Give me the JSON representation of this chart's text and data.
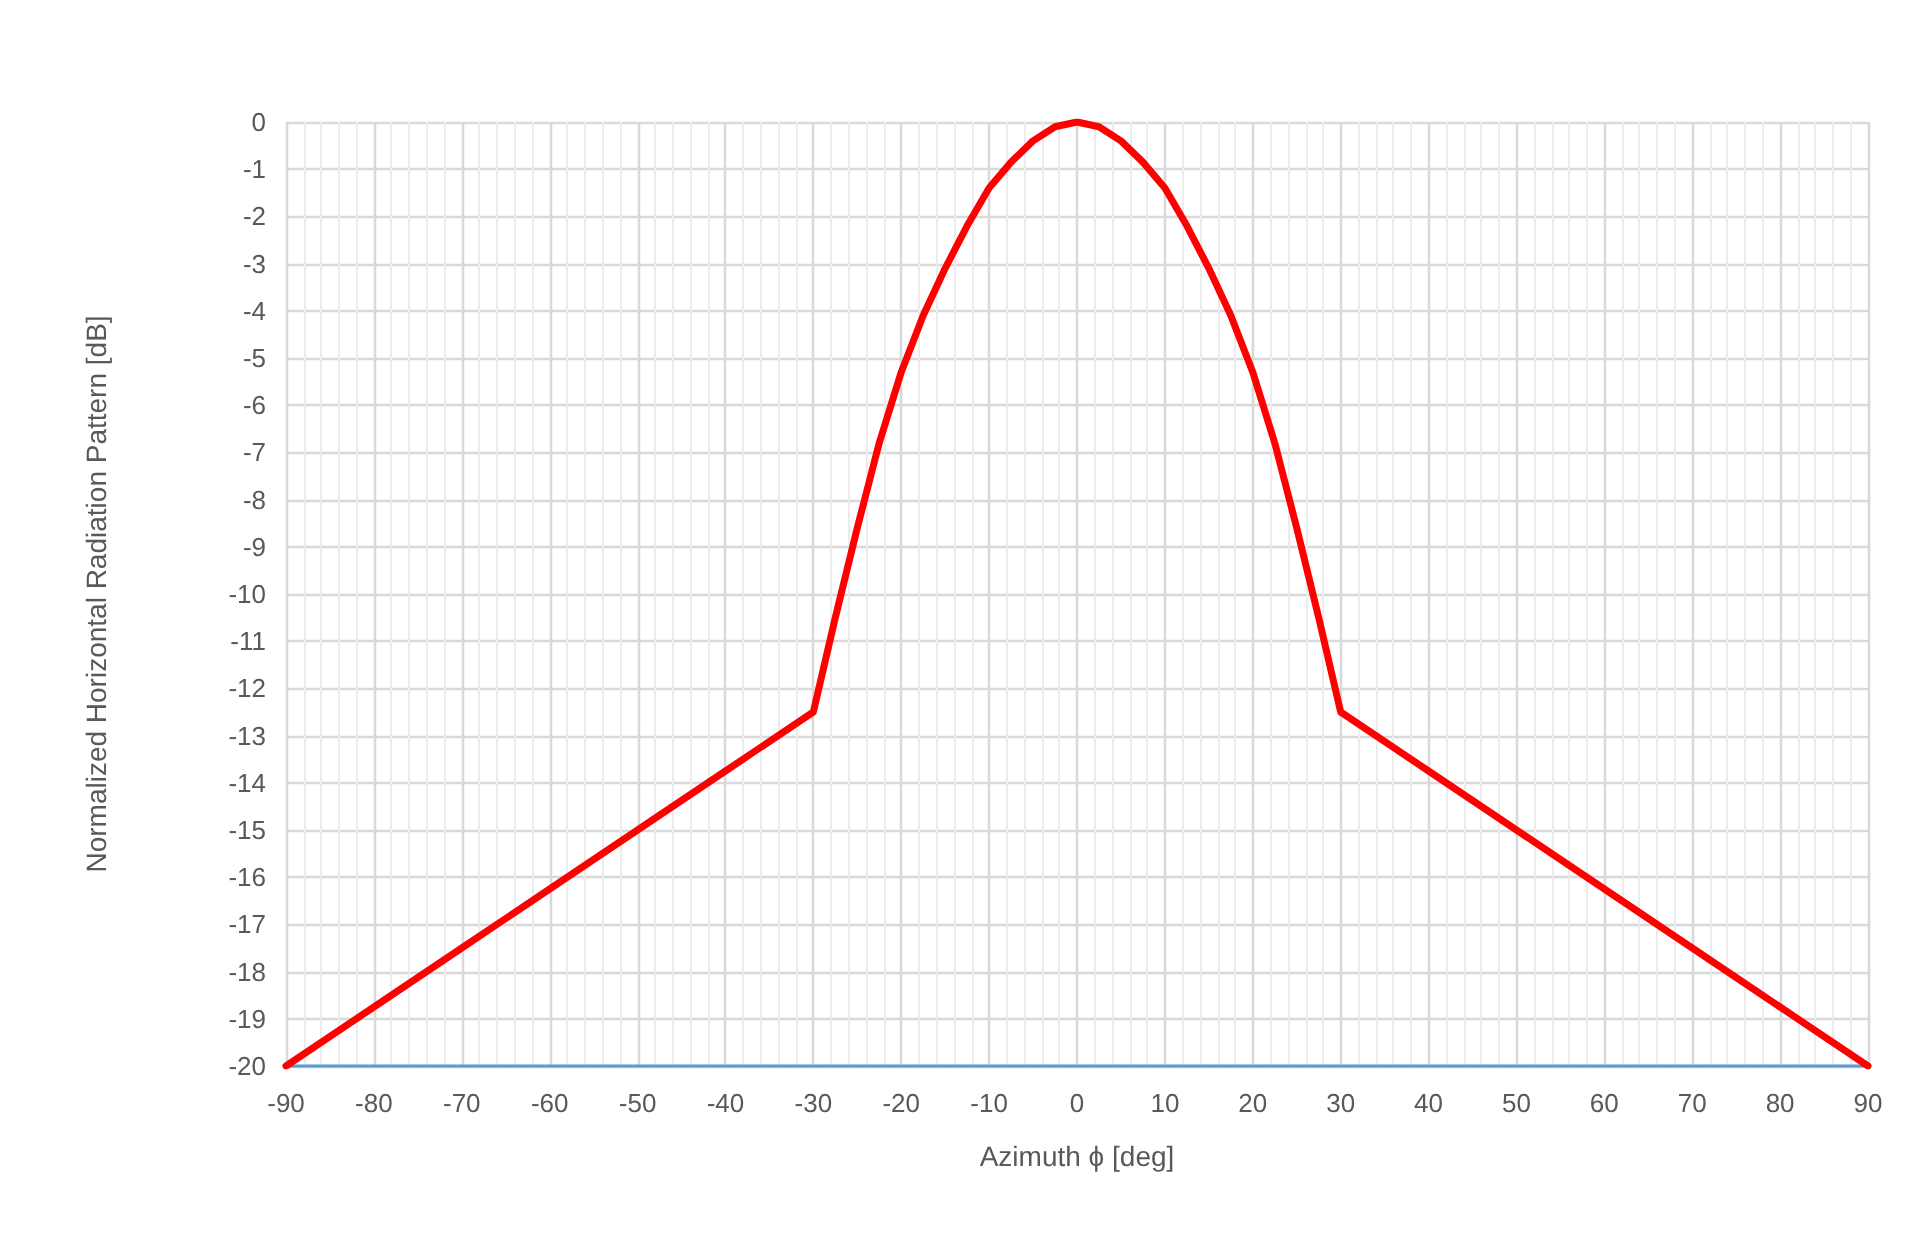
{
  "chart_data": {
    "type": "line",
    "xlabel": "Azimuth ϕ [deg]",
    "ylabel": "Normalized Horizontal Radiation Pattern [dB]",
    "x": [
      -90,
      -80,
      -70,
      -60,
      -50,
      -40,
      -30,
      -27.5,
      -25,
      -22.5,
      -20,
      -17.5,
      -15,
      -12.5,
      -10,
      -7.5,
      -5,
      -2.5,
      0,
      2.5,
      5,
      7.5,
      10,
      12.5,
      15,
      17.5,
      20,
      22.5,
      25,
      27.5,
      30,
      40,
      50,
      60,
      70,
      80,
      90
    ],
    "series": [
      {
        "color": "#ff0000",
        "values": [
          -20,
          -18.75,
          -17.5,
          -16.25,
          -15,
          -13.75,
          -12.5,
          -10.5,
          -8.6,
          -6.8,
          -5.3,
          -4.1,
          -3.1,
          -2.2,
          -1.4,
          -0.85,
          -0.4,
          -0.1,
          0,
          -0.1,
          -0.4,
          -0.85,
          -1.4,
          -2.2,
          -3.1,
          -4.1,
          -5.3,
          -6.8,
          -8.6,
          -10.5,
          -12.5,
          -13.75,
          -15,
          -16.25,
          -17.5,
          -18.75,
          -20
        ]
      }
    ],
    "xlim": [
      -90,
      90
    ],
    "xticks": [
      -90,
      -80,
      -70,
      -60,
      -50,
      -40,
      -30,
      -20,
      -10,
      0,
      10,
      20,
      30,
      40,
      50,
      60,
      70,
      80,
      90
    ],
    "ylim": [
      -20,
      0
    ],
    "yticks": [
      -20,
      -19,
      -18,
      -17,
      -16,
      -15,
      -14,
      -13,
      -12,
      -11,
      -10,
      -9,
      -8,
      -7,
      -6,
      -5,
      -4,
      -3,
      -2,
      -1,
      0
    ],
    "grid": true,
    "marker": "none",
    "line_style": "solid"
  }
}
